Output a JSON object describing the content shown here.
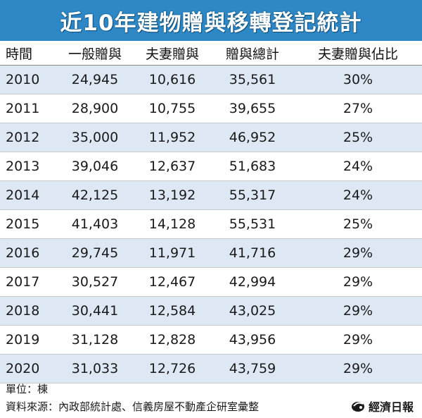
{
  "title": "近10年建物贈與移轉登記統計",
  "table": {
    "headers": [
      "時間",
      "一般贈與",
      "夫妻贈與",
      "贈與總計",
      "夫妻贈與佔比"
    ],
    "rows": [
      [
        "2010",
        "24,945",
        "10,616",
        "35,561",
        "30%"
      ],
      [
        "2011",
        "28,900",
        "10,755",
        "39,655",
        "27%"
      ],
      [
        "2012",
        "35,000",
        "11,952",
        "46,952",
        "25%"
      ],
      [
        "2013",
        "39,046",
        "12,637",
        "51,683",
        "24%"
      ],
      [
        "2014",
        "42,125",
        "13,192",
        "55,317",
        "24%"
      ],
      [
        "2015",
        "41,403",
        "14,128",
        "55,531",
        "25%"
      ],
      [
        "2016",
        "29,745",
        "11,971",
        "41,716",
        "29%"
      ],
      [
        "2017",
        "30,527",
        "12,467",
        "42,994",
        "29%"
      ],
      [
        "2018",
        "30,441",
        "12,584",
        "43,025",
        "29%"
      ],
      [
        "2019",
        "31,128",
        "12,828",
        "43,956",
        "29%"
      ],
      [
        "2020",
        "31,033",
        "12,726",
        "43,759",
        "29%"
      ]
    ]
  },
  "footer": {
    "unit": "單位：棟",
    "source": "資料來源：內政部統計處、信義房屋不動產企研室彙整",
    "brand": "經濟日報",
    "brand_icon": "udn-logo-icon"
  },
  "colors": {
    "title_bg": "#2e88c5",
    "stripe": "#dde8f4"
  },
  "chart_data": {
    "type": "table",
    "title": "近10年建物贈與移轉登記統計",
    "columns": [
      "時間",
      "一般贈與",
      "夫妻贈與",
      "贈與總計",
      "夫妻贈與佔比"
    ],
    "unit": "單位：棟",
    "x": [
      "2010",
      "2011",
      "2012",
      "2013",
      "2014",
      "2015",
      "2016",
      "2017",
      "2018",
      "2019",
      "2020"
    ],
    "series": [
      {
        "name": "一般贈與",
        "values": [
          24945,
          28900,
          35000,
          39046,
          42125,
          41403,
          29745,
          30527,
          30441,
          31128,
          31033
        ]
      },
      {
        "name": "夫妻贈與",
        "values": [
          10616,
          10755,
          11952,
          12637,
          13192,
          14128,
          11971,
          12467,
          12584,
          12828,
          12726
        ]
      },
      {
        "name": "贈與總計",
        "values": [
          35561,
          39655,
          46952,
          51683,
          55317,
          55531,
          41716,
          42994,
          43025,
          43956,
          43759
        ]
      },
      {
        "name": "夫妻贈與佔比",
        "values": [
          30,
          27,
          25,
          24,
          24,
          25,
          29,
          29,
          29,
          29,
          29
        ]
      }
    ]
  }
}
